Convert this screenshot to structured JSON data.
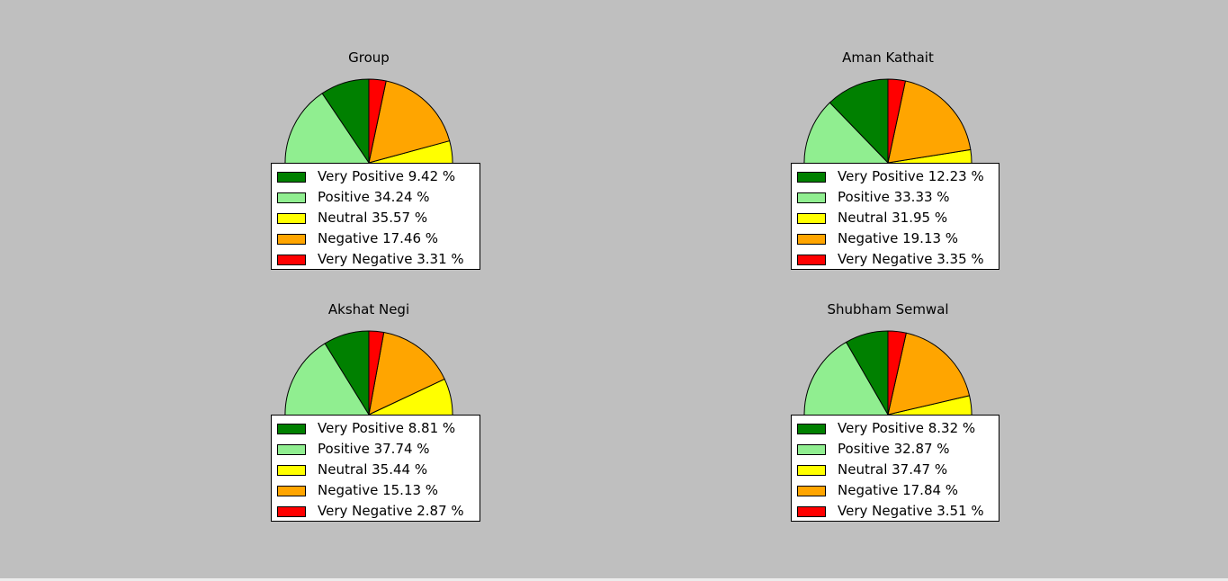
{
  "colors": {
    "background": "#bfbfbf",
    "very_positive": "#008000",
    "positive": "#90ee90",
    "neutral": "#ffff00",
    "negative": "#ffa500",
    "very_negative": "#ff0000"
  },
  "chart_data": [
    {
      "type": "pie",
      "title": "Group",
      "legend_placement": "lower-center",
      "slices": [
        {
          "label": "Very Positive 9.42 %",
          "value": 9.42,
          "color": "#008000"
        },
        {
          "label": "Positive 34.24 %",
          "value": 34.24,
          "color": "#90ee90"
        },
        {
          "label": "Neutral 35.57 %",
          "value": 35.57,
          "color": "#ffff00"
        },
        {
          "label": "Negative 17.46 %",
          "value": 17.46,
          "color": "#ffa500"
        },
        {
          "label": "Very Negative 3.31 %",
          "value": 3.31,
          "color": "#ff0000"
        }
      ]
    },
    {
      "type": "pie",
      "title": "Aman Kathait",
      "legend_placement": "lower-center",
      "slices": [
        {
          "label": "Very Positive 12.23 %",
          "value": 12.23,
          "color": "#008000"
        },
        {
          "label": "Positive 33.33 %",
          "value": 33.33,
          "color": "#90ee90"
        },
        {
          "label": "Neutral 31.95 %",
          "value": 31.95,
          "color": "#ffff00"
        },
        {
          "label": "Negative 19.13 %",
          "value": 19.13,
          "color": "#ffa500"
        },
        {
          "label": "Very Negative 3.35 %",
          "value": 3.35,
          "color": "#ff0000"
        }
      ]
    },
    {
      "type": "pie",
      "title": "Akshat Negi",
      "legend_placement": "lower-center",
      "slices": [
        {
          "label": "Very Positive 8.81 %",
          "value": 8.81,
          "color": "#008000"
        },
        {
          "label": "Positive 37.74 %",
          "value": 37.74,
          "color": "#90ee90"
        },
        {
          "label": "Neutral 35.44 %",
          "value": 35.44,
          "color": "#ffff00"
        },
        {
          "label": "Negative 15.13 %",
          "value": 15.13,
          "color": "#ffa500"
        },
        {
          "label": "Very Negative 2.87 %",
          "value": 2.87,
          "color": "#ff0000"
        }
      ]
    },
    {
      "type": "pie",
      "title": "Shubham Semwal",
      "legend_placement": "lower-center",
      "slices": [
        {
          "label": "Very Positive 8.32 %",
          "value": 8.32,
          "color": "#008000"
        },
        {
          "label": "Positive 32.87 %",
          "value": 32.87,
          "color": "#90ee90"
        },
        {
          "label": "Neutral 37.47 %",
          "value": 37.47,
          "color": "#ffff00"
        },
        {
          "label": "Negative 17.84 %",
          "value": 17.84,
          "color": "#ffa500"
        },
        {
          "label": "Very Negative 3.51 %",
          "value": 3.51,
          "color": "#ff0000"
        }
      ]
    }
  ]
}
